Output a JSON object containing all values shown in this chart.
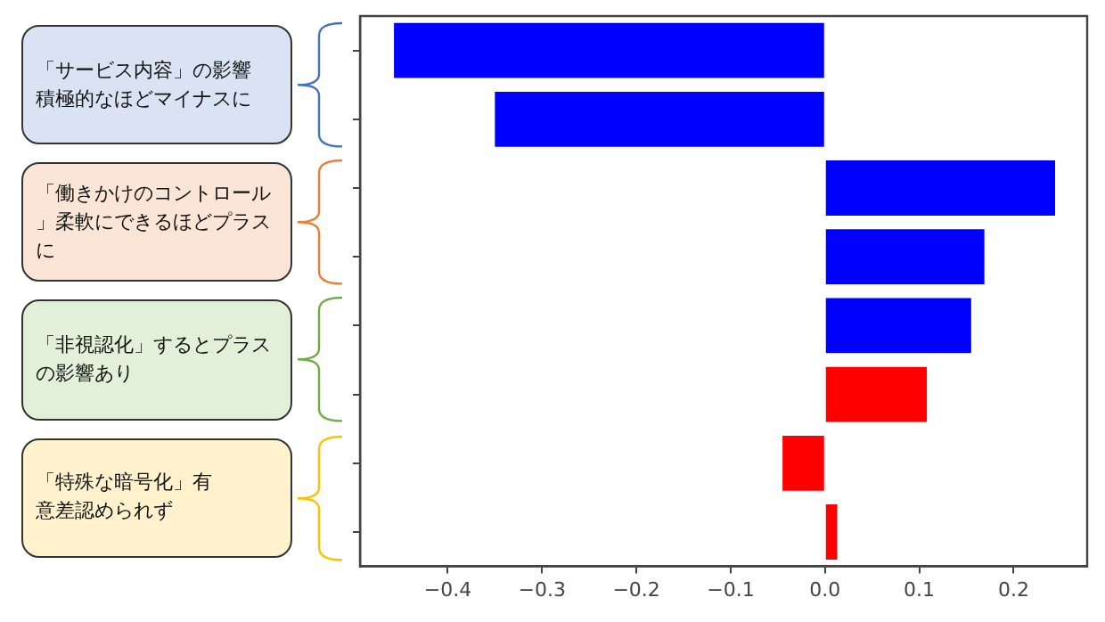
{
  "chart_data": {
    "type": "bar",
    "orientation": "horizontal",
    "categories": [
      null,
      null,
      null,
      null,
      null,
      null,
      null,
      null
    ],
    "values": [
      -0.457,
      -0.35,
      0.244,
      0.169,
      0.155,
      0.108,
      -0.045,
      0.013
    ],
    "colors": [
      "#0000ff",
      "#0000ff",
      "#0000ff",
      "#0000ff",
      "#0000ff",
      "#ff0000",
      "#ff0000",
      "#ff0000"
    ],
    "xlim": [
      -0.493,
      0.278
    ],
    "xticks": [
      {
        "value": -0.4,
        "label": "−0.4"
      },
      {
        "value": -0.3,
        "label": "−0.3"
      },
      {
        "value": -0.2,
        "label": "−0.2"
      },
      {
        "value": -0.1,
        "label": "−0.1"
      },
      {
        "value": 0,
        "label": "0.0"
      },
      {
        "value": 0.1,
        "label": "0.1"
      },
      {
        "value": 0.2,
        "label": "0.2"
      }
    ],
    "tick_labels": "x",
    "grid": false,
    "legend": false,
    "annotations": [
      "「サービス内容」の影響積極的なほどマイナスに",
      "「働きかけのコントロール」柔軟にできるほどプラスに",
      "「非視認化」するとプラスの影響あり",
      "「特殊な暗号化」有意差認められず"
    ]
  }
}
